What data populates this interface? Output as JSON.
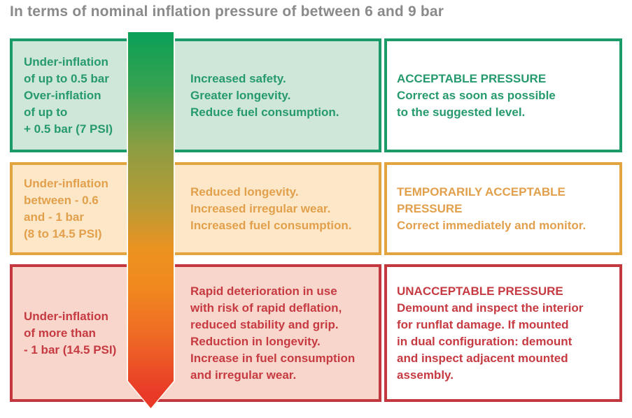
{
  "title": "In terms of nominal inflation pressure of between 6 and 9 bar",
  "rows": [
    {
      "tone": "green",
      "hazard": "Under-inflation\nof up to 0.5 bar\nOver-inflation\nof up to\n+ 0.5 bar (7 PSI)",
      "consequences": "Increased safety.\nGreater longevity.\nReduce fuel consumption.",
      "status_title": "ACCEPTABLE PRESSURE",
      "action": "Correct as soon as possible\nto the suggested level."
    },
    {
      "tone": "amber",
      "hazard": "Under-inflation\nbetween - 0.6\nand - 1 bar\n(8 to 14.5 PSI)",
      "consequences": "Reduced longevity.\nIncreased irregular wear.\nIncreased fuel consumption.",
      "status_title": "TEMPORARILY ACCEPTABLE\nPRESSURE",
      "action": "Correct immediately and monitor."
    },
    {
      "tone": "red",
      "hazard": "Under-inflation\nof more than\n- 1 bar (14.5 PSI)",
      "consequences": "Rapid deterioration in use\nwith risk of rapid deflation,\nreduced stability and grip.\nReduction in longevity.\nIncrease in fuel consumption\nand irregular wear.",
      "status_title": "UNACCEPTABLE PRESSURE",
      "action": "Demount and inspect the interior\nfor runflat damage. If mounted\nin dual configuration: demount\nand inspect adjacent mounted\nassembly."
    }
  ],
  "arrow": {
    "name": "severity-gradient-arrow",
    "direction": "down",
    "top_color": "#0ba058",
    "mid_color": "#ec9220",
    "bottom_color": "#e93a28"
  },
  "palette": {
    "title_gray": "#8a8a8a",
    "green_border": "#1b9b68",
    "green_text": "#269a6d",
    "green_bg": "#cfe7d9",
    "amber_border": "#e2a43e",
    "amber_text": "#e2a04c",
    "amber_bg": "#fce8c8",
    "red_border": "#c2383e",
    "red_text": "#c63a42",
    "red_bg": "#f9d6cb"
  }
}
